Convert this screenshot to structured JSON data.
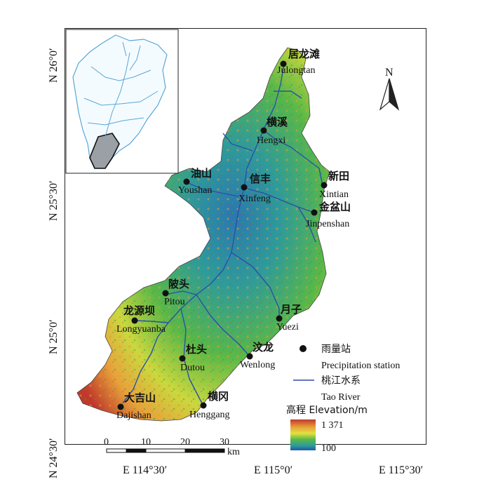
{
  "axes": {
    "lat_labels": [
      "N 26°0′",
      "N 25°30′",
      "N 25°0′",
      "N 24°30′"
    ],
    "lon_labels": [
      "E 114°30′",
      "E 115°0′",
      "E 115°30′"
    ]
  },
  "stations": [
    {
      "cn": "居龙滩",
      "en": "Julongtan"
    },
    {
      "cn": "横溪",
      "en": "Hengxi"
    },
    {
      "cn": "油山",
      "en": "Youshan"
    },
    {
      "cn": "信丰",
      "en": "Xinfeng"
    },
    {
      "cn": "新田",
      "en": "Xintian"
    },
    {
      "cn": "金盆山",
      "en": "Jinpenshan"
    },
    {
      "cn": "陂头",
      "en": "Pitou"
    },
    {
      "cn": "龙源坝",
      "en": "Longyuanba"
    },
    {
      "cn": "月子",
      "en": "Yuezi"
    },
    {
      "cn": "杜头",
      "en": "Dutou"
    },
    {
      "cn": "汶龙",
      "en": "Wenlong"
    },
    {
      "cn": "大吉山",
      "en": "Dajishan"
    },
    {
      "cn": "横冈",
      "en": "Henggang"
    }
  ],
  "legend": {
    "station_cn": "雨量站",
    "station_en": "Precipitation station",
    "river_cn": "桃江水系",
    "river_en": "Tao River",
    "elevation_title": "高程 Elevation/m",
    "elev_max": "1 371",
    "elev_min": "100"
  },
  "north_label": "N",
  "scale": {
    "ticks": [
      "0",
      "10",
      "20",
      "30"
    ],
    "unit": "km"
  },
  "colors": {
    "river": "#2b4fa8",
    "inset_river": "#5aa6d8",
    "elev_high": "#c0392b",
    "elev_mid": "#58b848",
    "elev_low": "#1b6aa8"
  }
}
